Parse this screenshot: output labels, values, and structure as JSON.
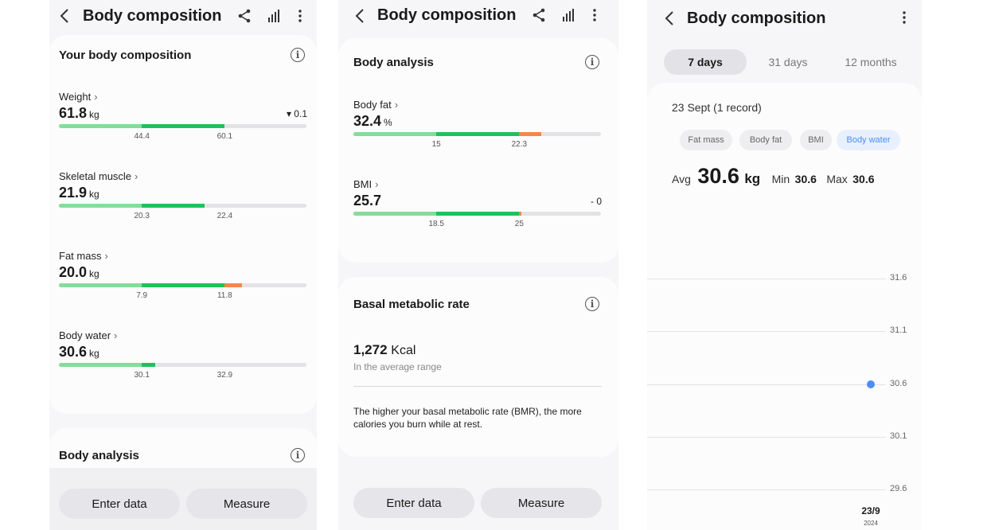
{
  "panel1": {
    "header": {
      "title": "Body composition"
    },
    "section_title": "Your body composition",
    "metrics": [
      {
        "label": "Weight",
        "value": "61.8",
        "unit": "kg",
        "delta": "▾ 0.1",
        "ticks": [
          "44.4",
          "60.1"
        ],
        "level": 0.67
      },
      {
        "label": "Skeletal muscle",
        "value": "21.9",
        "unit": "kg",
        "delta": "",
        "ticks": [
          "20.3",
          "22.4"
        ],
        "level": 0.59
      },
      {
        "label": "Fat mass",
        "value": "20.0",
        "unit": "kg",
        "delta": "",
        "ticks": [
          "7.9",
          "11.8"
        ],
        "level": 0.74
      },
      {
        "label": "Body water",
        "value": "30.6",
        "unit": "kg",
        "delta": "",
        "ticks": [
          "30.1",
          "32.9"
        ],
        "level": 0.39
      }
    ],
    "bottom_section_title": "Body analysis",
    "buttons": {
      "enter": "Enter data",
      "measure": "Measure"
    }
  },
  "panel2": {
    "header": {
      "title": "Body composition"
    },
    "analysis": {
      "title": "Body analysis",
      "metrics": [
        {
          "label": "Body fat",
          "value": "32.4",
          "unit": "%",
          "delta": "",
          "ticks": [
            "15",
            "22.3"
          ],
          "level": 0.76
        },
        {
          "label": "BMI",
          "value": "25.7",
          "unit": "",
          "delta": "- 0",
          "ticks": [
            "18.5",
            "25"
          ],
          "level": 0.68
        }
      ]
    },
    "bmr": {
      "title": "Basal metabolic rate",
      "value": "1,272",
      "unit": "Kcal",
      "status": "In the average range",
      "description": "The higher your basal metabolic rate (BMR), the more calories you burn while at rest."
    },
    "buttons": {
      "enter": "Enter data",
      "measure": "Measure"
    }
  },
  "panel3": {
    "header": {
      "title": "Body composition"
    },
    "tabs": [
      "7 days",
      "31 days",
      "12 months"
    ],
    "active_tab": 0,
    "record_date": "23 Sept (1 record)",
    "chips": [
      "Fat mass",
      "Body fat",
      "BMI",
      "Body water"
    ],
    "active_chip": 3,
    "stats": {
      "avg_label": "Avg",
      "avg_value": "30.6",
      "avg_unit": "kg",
      "min_label": "Min",
      "min_value": "30.6",
      "max_label": "Max",
      "max_value": "30.6"
    }
  },
  "chart_data": {
    "type": "scatter",
    "title": "",
    "yticks": [
      "31.6",
      "31.1",
      "30.6",
      "30.1",
      "29.6"
    ],
    "ylim": [
      29.6,
      31.6
    ],
    "grid": true,
    "x": [
      "23/9"
    ],
    "x_sub": [
      "2024"
    ],
    "series": [
      {
        "values": [
          30.6
        ],
        "color": "#4c8df6"
      }
    ]
  },
  "colors": {
    "low": "#86dc9a",
    "normal": "#1fc25a",
    "high": "#f4864d",
    "accent": "#4c8df6"
  }
}
